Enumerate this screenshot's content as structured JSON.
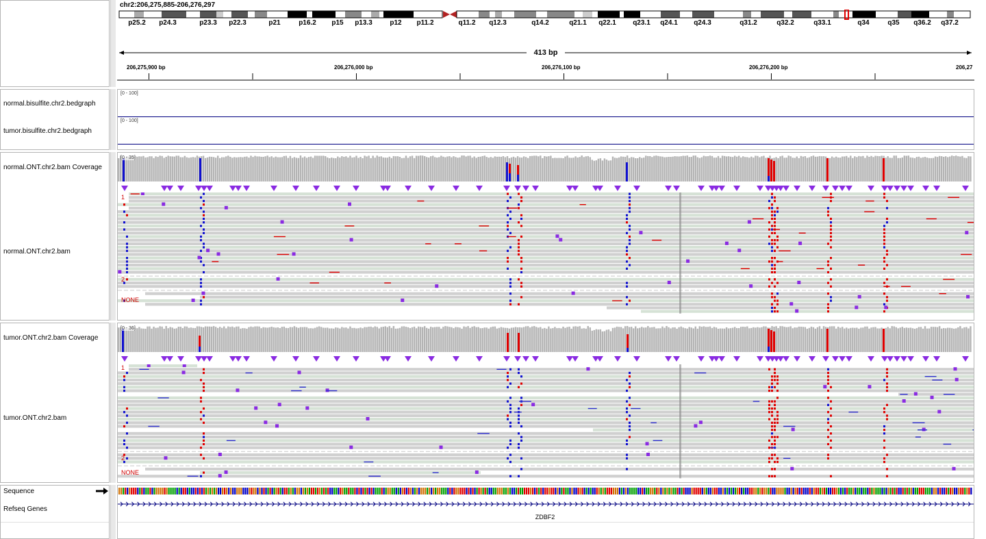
{
  "header": {
    "locus": "chr2:206,275,885-206,276,297",
    "span_label": "413 bp",
    "bands": [
      "p25.2",
      "p24.3",
      "p23.3",
      "p22.3",
      "p21",
      "p16.2",
      "p15",
      "p13.3",
      "p12",
      "p11.2",
      "q11.2",
      "q12.3",
      "q14.2",
      "q21.1",
      "q22.1",
      "q23.1",
      "q24.1",
      "q24.3",
      "q31.2",
      "q32.2",
      "q33.1",
      "q34",
      "q35",
      "q36.2",
      "q37.2"
    ],
    "ticks": [
      "206,275,900 bp",
      "206,276,000 bp",
      "206,276,100 bp",
      "206,276,200 bp",
      "206,27"
    ]
  },
  "tracks": {
    "normal_bisulfite": {
      "name": "normal.bisulfite.chr2.bedgraph",
      "range": "[0 - 100]"
    },
    "tumor_bisulfite": {
      "name": "tumor.bisulfite.chr2.bedgraph",
      "range": "[0 - 100]"
    },
    "normal_cov": {
      "name": "normal.ONT.chr2.bam Coverage",
      "range": "[0 - 35]"
    },
    "normal_bam": {
      "name": "normal.ONT.chr2.bam",
      "groups": [
        "1",
        "2",
        "NONE"
      ]
    },
    "tumor_cov": {
      "name": "tumor.ONT.chr2.bam Coverage",
      "range": "[0 - 36]"
    },
    "tumor_bam": {
      "name": "tumor.ONT.chr2.bam",
      "groups": [
        "1",
        "2",
        "NONE"
      ]
    },
    "sequence": {
      "name": "Sequence"
    },
    "refseq": {
      "name": "Refseq Genes",
      "gene": "ZDBF2"
    }
  },
  "colors": {
    "read_fill": "#d0d0d0",
    "read_alt_fill": "#d6e2d6",
    "methyl_red": "#e00000",
    "unmethyl_blue": "#1010d0",
    "insertion_purple": "#8a2be2",
    "coverage_gray": "#b4b4b4",
    "line_navy": "#000080"
  }
}
